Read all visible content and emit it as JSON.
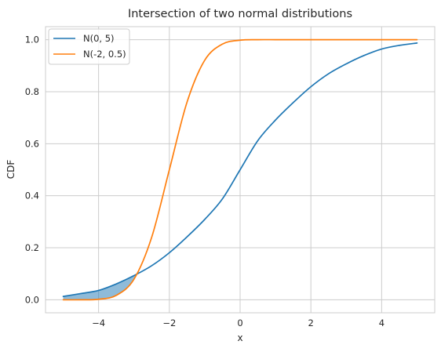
{
  "chart_data": {
    "type": "line",
    "title": "Intersection of two normal distributions",
    "xlabel": "x",
    "ylabel": "CDF",
    "xlim": [
      -5.5,
      5.5
    ],
    "ylim": [
      -0.05,
      1.05
    ],
    "xticks": [
      -4,
      -2,
      0,
      2,
      4
    ],
    "xtick_labels": [
      "−4",
      "−2",
      "0",
      "2",
      "4"
    ],
    "yticks": [
      0.0,
      0.2,
      0.4,
      0.6,
      0.8,
      1.0
    ],
    "ytick_labels": [
      "0.0",
      "0.2",
      "0.4",
      "0.6",
      "0.8",
      "1.0"
    ],
    "grid": true,
    "legend_position": "top-left",
    "x": [
      -5,
      -4.5,
      -4,
      -3.5,
      -3,
      -2.5,
      -2,
      -1.5,
      -1,
      -0.5,
      0,
      0.5,
      1,
      1.5,
      2,
      2.5,
      3,
      3.5,
      4,
      4.5,
      5
    ],
    "series": [
      {
        "name": "N(0, 5)",
        "color": "#1f77b4",
        "values": [
          0.013,
          0.024,
          0.036,
          0.061,
          0.093,
          0.131,
          0.181,
          0.242,
          0.309,
          0.388,
          0.5,
          0.612,
          0.691,
          0.758,
          0.819,
          0.869,
          0.907,
          0.939,
          0.964,
          0.978,
          0.987
        ]
      },
      {
        "name": "N(-2, 0.5)",
        "color": "#ff7f0e",
        "values": [
          0.0,
          0.0,
          0.002,
          0.017,
          0.079,
          0.24,
          0.5,
          0.76,
          0.921,
          0.983,
          0.998,
          1.0,
          1.0,
          1.0,
          1.0,
          1.0,
          1.0,
          1.0,
          1.0,
          1.0,
          1.0
        ]
      }
    ],
    "shaded_region": {
      "between": [
        "N(0, 5)",
        "N(-2, 0.5)"
      ],
      "x_range": [
        -5,
        -2.95
      ],
      "color": "#1f77b4",
      "opacity": 0.5
    }
  }
}
